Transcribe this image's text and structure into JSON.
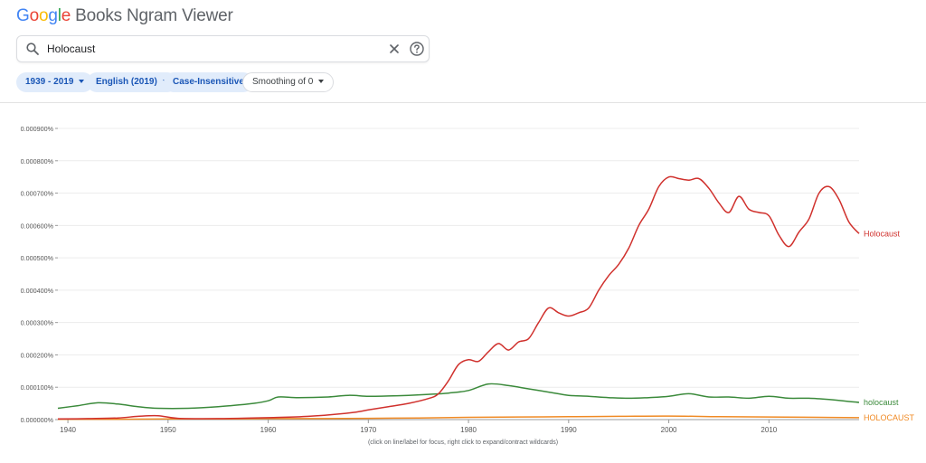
{
  "header": {
    "logo_google": [
      "G",
      "o",
      "o",
      "g",
      "l",
      "e"
    ],
    "logo_rest": "Books Ngram Viewer",
    "search": {
      "value": "Holocaust"
    },
    "chips": [
      {
        "label": "1939 - 2019",
        "dropdown": true
      },
      {
        "label": "English (2019)",
        "dropdown": true
      },
      {
        "label": "Case-Insensitive",
        "dropdown": false
      },
      {
        "label": "Smoothing of 0",
        "dropdown": true
      }
    ]
  },
  "icons": {
    "search": "search-icon",
    "clear": "close-icon",
    "help": "help-icon"
  },
  "footer_note": "(click on line/label for focus, right click to expand/contract wildcards)",
  "chart_data": {
    "type": "line",
    "grid": true,
    "xlim": [
      1939,
      2019
    ],
    "ylim": [
      0,
      0.0009
    ],
    "xticks": [
      1940,
      1950,
      1960,
      1970,
      1980,
      1990,
      2000,
      2010
    ],
    "ytick_labels": [
      "0.000000%",
      "0.000100%",
      "0.000200%",
      "0.000300%",
      "0.000400%",
      "0.000500%",
      "0.000600%",
      "0.000700%",
      "0.000800%",
      "0.000900%"
    ],
    "series": [
      {
        "name": "Holocaust",
        "color": "#d0312d",
        "x": [
          1939,
          1942,
          1945,
          1947,
          1949,
          1951,
          1955,
          1960,
          1964,
          1968,
          1970,
          1972,
          1974,
          1976,
          1977,
          1978,
          1979,
          1980,
          1981,
          1982,
          1983,
          1984,
          1985,
          1986,
          1987,
          1988,
          1989,
          1990,
          1991,
          1992,
          1993,
          1994,
          1995,
          1996,
          1997,
          1998,
          1999,
          2000,
          2001,
          2002,
          2003,
          2004,
          2005,
          2006,
          2007,
          2008,
          2009,
          2010,
          2011,
          2012,
          2013,
          2014,
          2015,
          2016,
          2017,
          2018,
          2019
        ],
        "y": [
          2e-06,
          3e-06,
          5e-06,
          1e-05,
          1.2e-05,
          4e-06,
          3e-06,
          6e-06,
          1e-05,
          2e-05,
          3e-05,
          4e-05,
          5e-05,
          6.5e-05,
          8e-05,
          0.00012,
          0.00017,
          0.000185,
          0.00018,
          0.00021,
          0.000235,
          0.000215,
          0.00024,
          0.00025,
          0.0003,
          0.000345,
          0.00033,
          0.00032,
          0.00033,
          0.000345,
          0.0004,
          0.000445,
          0.00048,
          0.00053,
          0.0006,
          0.00065,
          0.00072,
          0.00075,
          0.000745,
          0.00074,
          0.000745,
          0.000715,
          0.00067,
          0.00064,
          0.00069,
          0.00065,
          0.00064,
          0.00063,
          0.00057,
          0.000535,
          0.00058,
          0.00062,
          0.0007,
          0.00072,
          0.00068,
          0.00061,
          0.000575
        ]
      },
      {
        "name": "holocaust",
        "color": "#3b8a3b",
        "x": [
          1939,
          1941,
          1943,
          1945,
          1947,
          1949,
          1952,
          1955,
          1958,
          1960,
          1961,
          1963,
          1966,
          1968,
          1970,
          1972,
          1974,
          1976,
          1978,
          1980,
          1982,
          1984,
          1986,
          1988,
          1990,
          1992,
          1994,
          1996,
          1998,
          2000,
          2002,
          2004,
          2006,
          2008,
          2010,
          2012,
          2014,
          2016,
          2018,
          2019
        ],
        "y": [
          3.5e-05,
          4.3e-05,
          5.2e-05,
          4.8e-05,
          4e-05,
          3.5e-05,
          3.5e-05,
          4e-05,
          4.8e-05,
          5.8e-05,
          7e-05,
          6.8e-05,
          7e-05,
          7.5e-05,
          7.2e-05,
          7.3e-05,
          7.5e-05,
          7.8e-05,
          8.2e-05,
          9e-05,
          0.00011,
          0.000105,
          9.5e-05,
          8.5e-05,
          7.5e-05,
          7.2e-05,
          6.8e-05,
          6.6e-05,
          6.8e-05,
          7.2e-05,
          8e-05,
          7e-05,
          7e-05,
          6.6e-05,
          7.2e-05,
          6.6e-05,
          6.6e-05,
          6.2e-05,
          5.6e-05,
          5.3e-05
        ]
      },
      {
        "name": "HOLOCAUST",
        "color": "#f08a24",
        "x": [
          1939,
          1945,
          1950,
          1955,
          1960,
          1965,
          1970,
          1975,
          1980,
          1985,
          1990,
          1995,
          2000,
          2005,
          2010,
          2015,
          2019
        ],
        "y": [
          1e-06,
          1e-06,
          2e-06,
          2e-06,
          3e-06,
          3e-06,
          4e-06,
          5e-06,
          7e-06,
          8e-06,
          9e-06,
          1e-05,
          1.1e-05,
          9e-06,
          8e-06,
          7e-06,
          6e-06
        ]
      }
    ]
  }
}
